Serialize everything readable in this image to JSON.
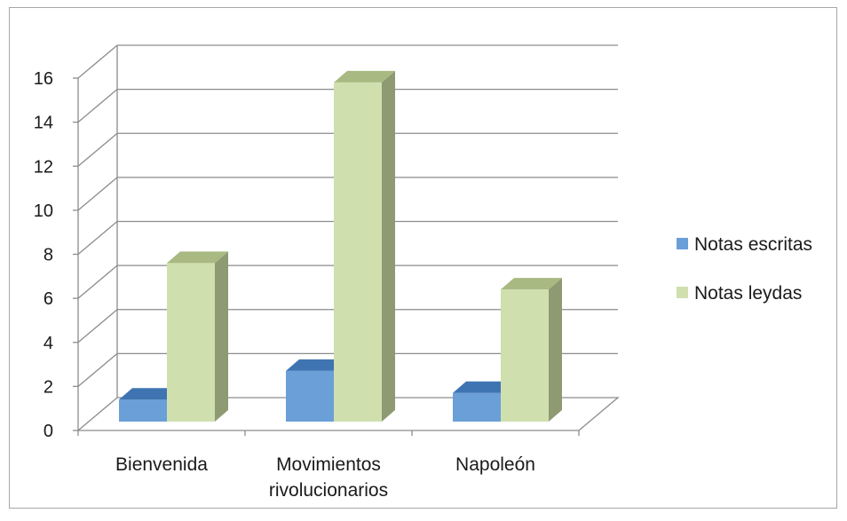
{
  "chart_data": {
    "type": "bar",
    "categories": [
      "Bienvenida",
      "Movimientos rivolucionarios",
      "Napoleón"
    ],
    "category_lines": [
      [
        "Bienvenida"
      ],
      [
        "Movimientos",
        "rivolucionarios"
      ],
      [
        "Napoleón"
      ]
    ],
    "series": [
      {
        "name": "Notas escritas",
        "values": [
          1,
          2.3,
          1.3
        ],
        "color": "#6a9fd8",
        "top_color": "#3f74b2",
        "side_color": "#3d6aa3"
      },
      {
        "name": "Notas leydas",
        "values": [
          7.2,
          15.4,
          6
        ],
        "color": "#d0dfae",
        "top_color": "#a8ba82",
        "side_color": "#8e9a72"
      }
    ],
    "yticks": [
      0,
      2,
      4,
      6,
      8,
      10,
      12,
      14,
      16
    ],
    "ylim": [
      0,
      16
    ],
    "grid": true,
    "legend": "right",
    "style": "3d-clustered-column",
    "colors": {
      "grid": "#8c8c8c",
      "frame": "#a6a6a6"
    }
  }
}
